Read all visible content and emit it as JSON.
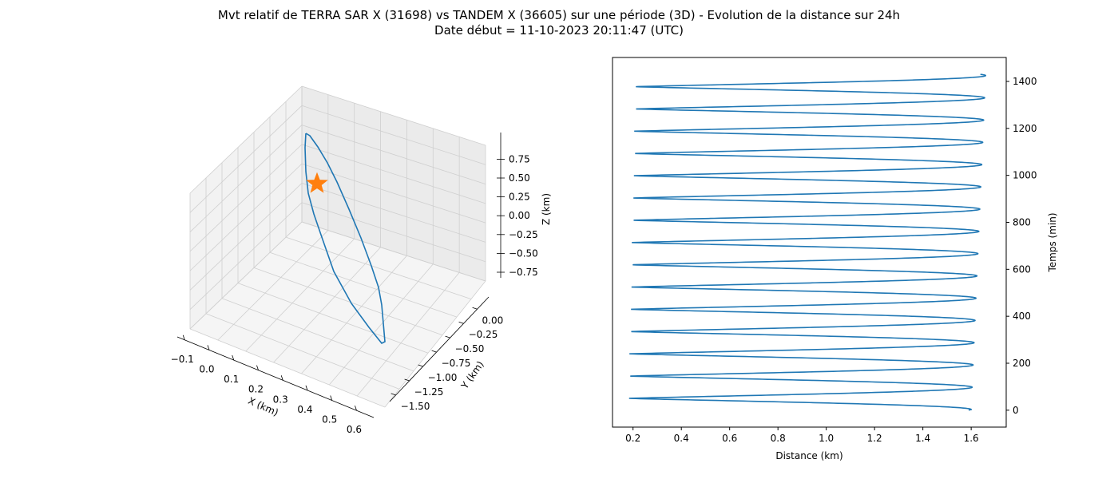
{
  "figure": {
    "title_line1": "Mvt relatif de TERRA SAR X (31698) vs TANDEM X (36605) sur une période (3D) - Evolution de la distance sur 24h",
    "title_line2": "Date début = 11-10-2023 20:11:47 (UTC)",
    "line_color": "#1f77b4",
    "marker_color": "#ff7f0e"
  },
  "chart_data": [
    {
      "type": "line3d",
      "xlabel": "X (km)",
      "ylabel": "Y (km)",
      "zlabel": "Z (km)",
      "x_ticks": [
        "−0.1",
        "0.0",
        "0.1",
        "0.2",
        "0.3",
        "0.4",
        "0.5",
        "0.6"
      ],
      "y_ticks": [
        "−1.50",
        "−1.25",
        "−1.00",
        "−0.75",
        "−0.50",
        "−0.25",
        "0.00"
      ],
      "z_ticks": [
        "−0.75",
        "−0.50",
        "−0.25",
        "0.00",
        "0.25",
        "0.50",
        "0.75"
      ],
      "xlim": [
        -0.12,
        0.62
      ],
      "ylim": [
        -1.6,
        0.12
      ],
      "zlim": [
        -0.93,
        0.93
      ],
      "grid": true,
      "marker": {
        "shape": "star",
        "x": -0.08,
        "y": 0.05,
        "z": 0.45
      },
      "path_x": [
        -0.1,
        -0.11,
        -0.1,
        -0.05,
        0.05,
        0.2,
        0.35,
        0.5,
        0.58,
        0.57,
        0.52,
        0.4,
        0.25,
        0.1,
        0.0,
        -0.07,
        -0.1
      ],
      "path_y": [
        0.1,
        0.0,
        -0.15,
        -0.3,
        -0.5,
        -0.75,
        -1.0,
        -1.25,
        -1.45,
        -1.4,
        -1.2,
        -0.95,
        -0.7,
        -0.45,
        -0.2,
        0.0,
        0.1
      ],
      "path_z": [
        0.9,
        0.6,
        0.3,
        0.1,
        -0.15,
        -0.35,
        -0.55,
        -0.75,
        -0.9,
        -0.82,
        -0.6,
        -0.35,
        -0.1,
        0.15,
        0.45,
        0.8,
        0.9
      ]
    },
    {
      "type": "line",
      "xlabel": "Distance (km)",
      "ylabel": "Temps (min)",
      "x_ticks": [
        0.2,
        0.4,
        0.6,
        0.8,
        1.0,
        1.2,
        1.4,
        1.6
      ],
      "y_ticks": [
        0,
        200,
        400,
        600,
        800,
        1000,
        1200,
        1400
      ],
      "xlim": [
        0.115,
        1.745
      ],
      "ylim": [
        -72,
        1502
      ],
      "grid": false,
      "y_axis_side": "right",
      "t_end": 1430,
      "period_min": 94.8,
      "min_dist_first": 0.18,
      "min_dist_last": 0.21,
      "max_dist_first": 1.6,
      "max_dist_last": 1.66,
      "start_t": 0,
      "start_dist": 1.59,
      "first_min_t": 50,
      "first_max_t": 3,
      "phase_note_min": "min at t=50+k*94.8, max at t=3+k*94.8"
    }
  ]
}
